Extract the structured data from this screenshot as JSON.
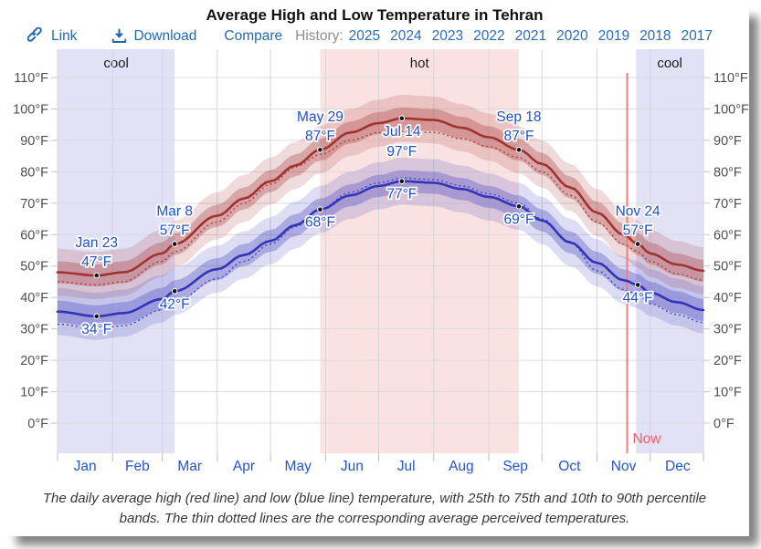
{
  "title": "Average High and Low Temperature in Tehran",
  "toolbar": {
    "link_label": "Link",
    "download_label": "Download",
    "compare_label": "Compare",
    "history_label": "History:",
    "years": [
      "2025",
      "2024",
      "2023",
      "2022",
      "2021",
      "2020",
      "2019",
      "2018",
      "2017"
    ]
  },
  "caption": "The daily average high (red line) and low (blue line) temperature, with 25th to 75th and 10th to 90th percentile bands. The thin dotted lines are the corresponding average perceived temperatures.",
  "colors": {
    "high_line": "#a23232",
    "low_line": "#3434b8",
    "high_dotted": "#b04040",
    "low_dotted": "#4646c8",
    "high_band": "#a93939",
    "low_band": "#4040bf",
    "hot_band": "#fbe2e2",
    "cool_band": "#e2e2f7",
    "now_line": "#f47c7c",
    "now_text": "#f05f65",
    "annotation_text": "#2050c8",
    "month_text": "#2356c7",
    "axis_text": "#4f4f4f",
    "grid": "#dcdcdc"
  },
  "chart_data": {
    "type": "line",
    "title": "Average High and Low Temperature in Tehran",
    "xlabel": "",
    "ylabel": "°F",
    "ylim": [
      0,
      110
    ],
    "y_ticks": [
      0,
      10,
      20,
      30,
      40,
      50,
      60,
      70,
      80,
      90,
      100,
      110
    ],
    "y_tick_suffix": "°F",
    "grid": true,
    "months": [
      "Jan",
      "Feb",
      "Mar",
      "Apr",
      "May",
      "Jun",
      "Jul",
      "Aug",
      "Sep",
      "Oct",
      "Nov",
      "Dec"
    ],
    "month_start_days": [
      1,
      32,
      60,
      91,
      121,
      152,
      182,
      213,
      244,
      274,
      305,
      335
    ],
    "year_end_day": 366,
    "seasons": [
      {
        "label": "cool",
        "start_day": 1,
        "end_day": 67
      },
      {
        "label": "hot",
        "start_day": 149,
        "end_day": 261
      },
      {
        "label": "cool",
        "start_day": 327,
        "end_day": 366
      }
    ],
    "now_marker": {
      "label": "Now",
      "day": 322
    },
    "bands": {
      "inner_name": "25th to 75th percentile",
      "outer_name": "10th to 90th percentile",
      "inner_half_width_f": 3.5,
      "outer_half_width_f": 7.5
    },
    "x_days": [
      1,
      23,
      38,
      60,
      67,
      91,
      106,
      121,
      135,
      149,
      166,
      182,
      195,
      213,
      229,
      244,
      261,
      274,
      290,
      305,
      320,
      328,
      335,
      350,
      365
    ],
    "series": [
      {
        "name": "average high",
        "style": "solid",
        "values": [
          48,
          47,
          48,
          54,
          57,
          66,
          71.5,
          77,
          82,
          87,
          92.5,
          95.5,
          97,
          96.5,
          94,
          91,
          87,
          82.5,
          75,
          67,
          60,
          57,
          54,
          50.5,
          48.5
        ]
      },
      {
        "name": "average low",
        "style": "solid",
        "values": [
          35.5,
          34,
          35,
          39.5,
          42,
          49,
          53.5,
          58,
          63,
          68,
          72.5,
          75.5,
          77,
          76.5,
          74.5,
          72,
          69,
          64.5,
          57.5,
          51,
          45.5,
          44,
          41.5,
          38.5,
          36
        ]
      },
      {
        "name": "perceived high",
        "style": "dotted",
        "values": [
          45,
          44,
          45,
          51.5,
          54.5,
          64,
          70,
          76,
          81.5,
          85.5,
          90,
          92.5,
          93,
          92.5,
          90.5,
          88,
          84.5,
          80,
          72.5,
          64,
          57,
          54.5,
          51.5,
          47.5,
          45.5
        ]
      },
      {
        "name": "perceived low",
        "style": "dotted",
        "values": [
          31.5,
          30,
          31,
          36,
          38.5,
          46,
          51.5,
          57,
          62.5,
          68,
          73.5,
          76.5,
          78,
          77.5,
          75.5,
          73,
          70,
          65,
          57.5,
          48.5,
          42.5,
          41,
          38,
          34.5,
          32
        ]
      }
    ],
    "annotations": [
      {
        "date": "Jan 23",
        "day": 23,
        "high": 47,
        "low": 34,
        "high_label_position": "above"
      },
      {
        "date": "Mar 8",
        "day": 67,
        "high": 57,
        "low": 42,
        "high_label_position": "above"
      },
      {
        "date": "May 29",
        "day": 149,
        "high": 87,
        "low": 68,
        "high_label_position": "above"
      },
      {
        "date": "Jul 14",
        "day": 195,
        "high": 97,
        "low": 77,
        "high_label_position": "below"
      },
      {
        "date": "Sep 18",
        "day": 261,
        "high": 87,
        "low": 69,
        "high_label_position": "above"
      },
      {
        "date": "Nov 24",
        "day": 328,
        "high": 57,
        "low": 44,
        "high_label_position": "above"
      }
    ],
    "temp_unit": "°F"
  }
}
